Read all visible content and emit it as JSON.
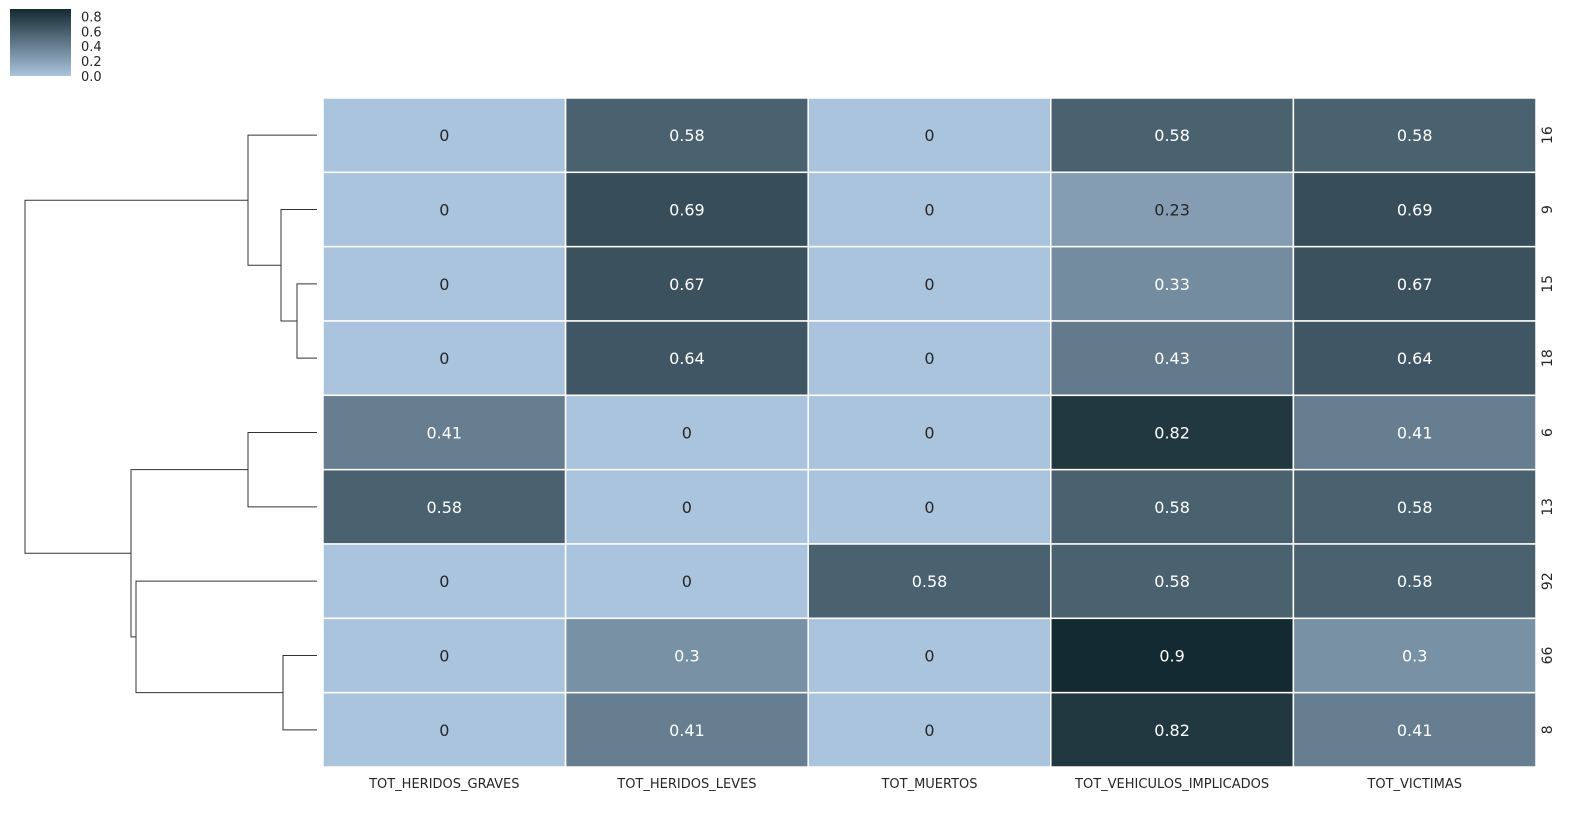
{
  "chart_data": {
    "type": "heatmap",
    "title": "",
    "xlabel": "",
    "ylabel": "",
    "columns": [
      "TOT_HERIDOS_GRAVES",
      "TOT_HERIDOS_LEVES",
      "TOT_MUERTOS",
      "TOT_VEHICULOS_IMPLICADOS",
      "TOT_VICTIMAS"
    ],
    "rows": [
      "16",
      "9",
      "15",
      "18",
      "6",
      "13",
      "92",
      "66",
      "8"
    ],
    "values": [
      [
        0,
        0.58,
        0,
        0.58,
        0.58
      ],
      [
        0,
        0.69,
        0,
        0.23,
        0.69
      ],
      [
        0,
        0.67,
        0,
        0.33,
        0.67
      ],
      [
        0,
        0.64,
        0,
        0.43,
        0.64
      ],
      [
        0.41,
        0,
        0,
        0.82,
        0.41
      ],
      [
        0.58,
        0,
        0,
        0.58,
        0.58
      ],
      [
        0,
        0,
        0.58,
        0.58,
        0.58
      ],
      [
        0,
        0.3,
        0,
        0.9,
        0.3
      ],
      [
        0,
        0.41,
        0,
        0.82,
        0.41
      ]
    ],
    "colorbar": {
      "ticks": [
        "0.8",
        "0.6",
        "0.4",
        "0.2",
        "0.0"
      ],
      "vmin": 0,
      "vmax": 0.9,
      "color_low": "#abc4de",
      "color_high": "#142a32"
    },
    "grid": false,
    "row_dendrogram": true,
    "col_dendrogram": false
  }
}
